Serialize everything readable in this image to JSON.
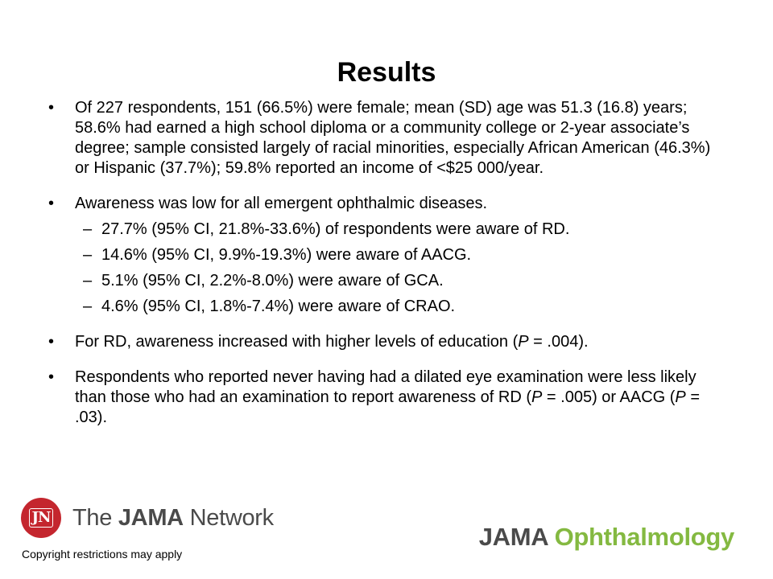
{
  "title": "Results",
  "bullet_symbol": "•",
  "dash_symbol": "–",
  "bullets": [
    {
      "text": "Of 227 respondents, 151 (66.5%) were female; mean (SD) age was 51.3 (16.8) years; 58.6% had earned a high school diploma or a community college or 2-year associate’s degree; sample consisted largely of racial minorities, especially African American (46.3%) or Hispanic (37.7%); 59.8% reported an income of <$25 000/year."
    },
    {
      "text": "Awareness was low for all emergent ophthalmic diseases.",
      "subitems": [
        "27.7% (95% CI, 21.8%-33.6%) of respondents were aware of RD.",
        "14.6% (95% CI, 9.9%-19.3%) were aware of AACG.",
        "5.1% (95% CI, 2.2%-8.0%) were aware of GCA.",
        "4.6% (95% CI, 1.8%-7.4%) were aware of CRAO."
      ]
    },
    {
      "text_before": "For RD, awareness increased with higher levels of education (",
      "p_label": "P",
      "text_after": " = .004)."
    },
    {
      "text_before": "Respondents who reported never having had a dilated eye examination were less likely than those who had an examination to report awareness of RD (",
      "p_label": "P",
      "text_middle": " = .005) or AACG (",
      "p_label_2": "P",
      "text_after": " = .03)."
    }
  ],
  "footer": {
    "seal_text": "JN",
    "network_the": "The",
    "network_jama": "JAMA",
    "network_network": "Network",
    "journal_jama": "JAMA",
    "journal_name": "Ophthalmology",
    "copyright": "Copyright restrictions may apply"
  },
  "colors": {
    "seal_red": "#c4262e",
    "logo_gray": "#4a4a4a",
    "ophthalmology_green": "#84b941"
  }
}
